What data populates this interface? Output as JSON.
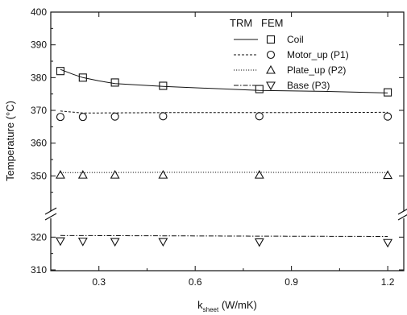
{
  "chart_data": {
    "type": "line",
    "xlabel": "k",
    "xlabel_subscript": "sheet",
    "xlabel_unit": " (W/mK)",
    "ylabel": "Temperature (°C)",
    "xlim": [
      0.15,
      1.25
    ],
    "ylim_upper": [
      340,
      400
    ],
    "ylim_lower": [
      310,
      325
    ],
    "axis_break": "between 325 and 340",
    "x_ticks": [
      0.3,
      0.6,
      0.9,
      1.2
    ],
    "x_tick_labels": [
      "0.3",
      "0.6",
      "0.9",
      "1.2"
    ],
    "y_ticks": [
      310,
      320,
      350,
      360,
      370,
      380,
      390,
      400
    ],
    "y_tick_labels": [
      "310",
      "320",
      "350",
      "360",
      "370",
      "380",
      "390",
      "400"
    ],
    "legend": {
      "placement": "top-right",
      "col_headers": [
        "TRM",
        "FEM"
      ]
    },
    "series": [
      {
        "name": "Coil",
        "color": "#111111",
        "line_style": "solid",
        "marker": "square",
        "trm": {
          "x": [
            0.18,
            0.22,
            0.25,
            0.3,
            0.35,
            0.5,
            0.8,
            1.0,
            1.2
          ],
          "y": [
            382.5,
            381.0,
            380.0,
            379.0,
            378.2,
            377.3,
            376.1,
            375.8,
            375.3
          ]
        },
        "fem": {
          "x": [
            0.18,
            0.25,
            0.35,
            0.5,
            0.8,
            1.2
          ],
          "y": [
            382,
            380,
            378.5,
            377.5,
            376.5,
            375.5
          ]
        }
      },
      {
        "name": "Motor_up (P1)",
        "color": "#111111",
        "line_style": "dashed",
        "marker": "circle",
        "trm": {
          "x": [
            0.18,
            0.25,
            0.5,
            0.8,
            1.2
          ],
          "y": [
            369.8,
            369.2,
            369.3,
            369.3,
            369.4
          ]
        },
        "fem": {
          "x": [
            0.18,
            0.25,
            0.35,
            0.5,
            0.8,
            1.2
          ],
          "y": [
            368,
            368,
            368.1,
            368.2,
            368.2,
            368.1
          ]
        }
      },
      {
        "name": "Plate_up (P2)",
        "color": "#111111",
        "line_style": "dotted",
        "marker": "triangle-up",
        "trm": {
          "x": [
            0.18,
            0.5,
            0.8,
            1.2
          ],
          "y": [
            351.0,
            351.1,
            351.1,
            351.0
          ]
        },
        "fem": {
          "x": [
            0.18,
            0.25,
            0.35,
            0.5,
            0.8,
            1.2
          ],
          "y": [
            350.3,
            350.3,
            350.3,
            350.3,
            350.3,
            350.2
          ]
        }
      },
      {
        "name": "Base (P3)",
        "color": "#111111",
        "line_style": "dashdot",
        "marker": "triangle-down",
        "trm": {
          "x": [
            0.18,
            0.5,
            0.8,
            1.2
          ],
          "y": [
            320.5,
            320.4,
            320.3,
            320.2
          ]
        },
        "fem": {
          "x": [
            0.18,
            0.25,
            0.35,
            0.5,
            0.8,
            1.2
          ],
          "y": [
            318.8,
            318.7,
            318.6,
            318.6,
            318.5,
            318.3
          ]
        }
      }
    ]
  }
}
